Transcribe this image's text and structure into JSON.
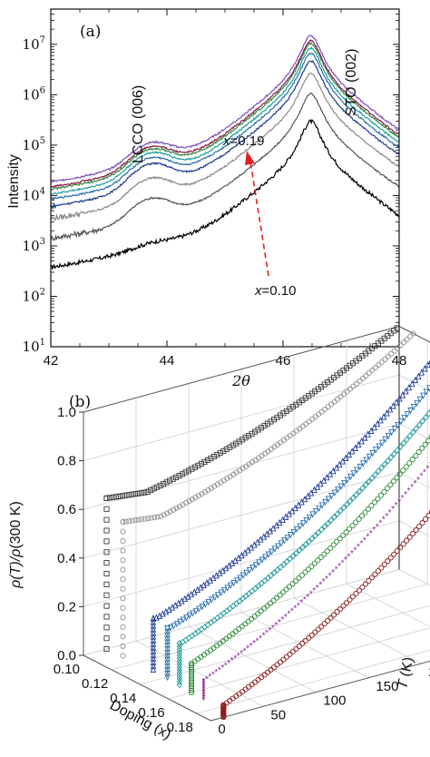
{
  "chart_data": [
    {
      "panel": "(a)",
      "type": "line",
      "ylabel": "Intensity",
      "xlabel": "2θ",
      "xlim": [
        42,
        48
      ],
      "ylim_log10": [
        1,
        7.7
      ],
      "yscale": "log",
      "x_ticks": [
        "42",
        "44",
        "46",
        "48"
      ],
      "y_ticks": [
        {
          "base": "10",
          "exp": "1"
        },
        {
          "base": "10",
          "exp": "2"
        },
        {
          "base": "10",
          "exp": "3"
        },
        {
          "base": "10",
          "exp": "4"
        },
        {
          "base": "10",
          "exp": "5"
        },
        {
          "base": "10",
          "exp": "6"
        },
        {
          "base": "10",
          "exp": "7"
        }
      ],
      "annotations": {
        "peak_lcco": "LCCO (006)",
        "peak_sto": "STO (002)",
        "x_high_var": "x",
        "x_high_val": "=0.19",
        "x_low_var": "x",
        "x_low_val": "=0.10"
      },
      "series": [
        {
          "color": "#000000",
          "baseline_log": 1.28,
          "lcco_peak_log": 2.35,
          "sto_peak_log": 5.45
        },
        {
          "color": "#555555",
          "baseline_log": 2.15,
          "lcco_peak_log": 3.75,
          "sto_peak_log": 6.0
        },
        {
          "color": "#8a8a8a",
          "baseline_log": 2.45,
          "lcco_peak_log": 4.15,
          "sto_peak_log": 6.4
        },
        {
          "color": "#1f3a93",
          "baseline_log": 2.6,
          "lcco_peak_log": 4.45,
          "sto_peak_log": 6.65
        },
        {
          "color": "#2a6fb0",
          "baseline_log": 2.65,
          "lcco_peak_log": 4.55,
          "sto_peak_log": 6.8
        },
        {
          "color": "#1fa0a0",
          "baseline_log": 2.7,
          "lcco_peak_log": 4.65,
          "sto_peak_log": 6.9
        },
        {
          "color": "#2e8b3a",
          "baseline_log": 2.72,
          "lcco_peak_log": 4.7,
          "sto_peak_log": 7.0
        },
        {
          "color": "#8b1a4a",
          "baseline_log": 2.75,
          "lcco_peak_log": 4.75,
          "sto_peak_log": 7.05
        },
        {
          "color": "#7a4fc0",
          "baseline_log": 2.78,
          "lcco_peak_log": 4.82,
          "sto_peak_log": 7.15
        }
      ],
      "peaks": {
        "lcco_center": 43.75,
        "sto_center": 46.48
      }
    },
    {
      "panel": "(b)",
      "type": "line3d",
      "zlabel_var": "ρ",
      "zlabel_mid": "(T)/",
      "zlabel_tail": "(300 K)",
      "xlabel": "Doping (x)",
      "ylabel_var": "T",
      "ylabel_unit": "(K)",
      "z_ticks": [
        "0.0",
        "0.2",
        "0.4",
        "0.6",
        "0.8",
        "1.0"
      ],
      "doping_ticks": [
        "0.10",
        "0.12",
        "0.14",
        "0.16",
        "0.18"
      ],
      "temperature_ticks": [
        "0",
        "50",
        "100",
        "150",
        "200",
        "250",
        "300"
      ],
      "series": [
        {
          "doping": 0.1,
          "color": "#3a3a3a",
          "marker": "square",
          "tc": 22,
          "rho_tc": 0.62,
          "rho_min_T": 60,
          "rho_min": 0.6
        },
        {
          "doping": 0.11,
          "color": "#909090",
          "marker": "circle",
          "tc": 24,
          "rho_tc": 0.55,
          "rho_min_T": 60,
          "rho_min": 0.53
        },
        {
          "doping": 0.13,
          "color": "#1f3a93",
          "marker": "triangle-up",
          "tc": 26,
          "rho_tc": 0.21,
          "rho_min_T": 30,
          "rho_min": 0.21
        },
        {
          "doping": 0.14,
          "color": "#2a6fb0",
          "marker": "triangle-down",
          "tc": 26,
          "rho_tc": 0.2,
          "rho_min_T": 30,
          "rho_min": 0.2
        },
        {
          "doping": 0.15,
          "color": "#1f9a9a",
          "marker": "diamond",
          "tc": 24,
          "rho_tc": 0.17,
          "rho_min_T": 26,
          "rho_min": 0.17
        },
        {
          "doping": 0.16,
          "color": "#2e8b3a",
          "marker": "circle",
          "tc": 22,
          "rho_tc": 0.12,
          "rho_min_T": 22,
          "rho_min": 0.12
        },
        {
          "doping": 0.17,
          "color": "#8a2a9a",
          "marker": "star",
          "tc": 20,
          "rho_tc": 0.08,
          "rho_min_T": 20,
          "rho_min": 0.08
        },
        {
          "doping": 0.19,
          "color": "#8b1a1a",
          "marker": "circle",
          "tc": 12,
          "rho_tc": 0.05,
          "rho_min_T": 12,
          "rho_min": 0.05
        }
      ]
    }
  ]
}
